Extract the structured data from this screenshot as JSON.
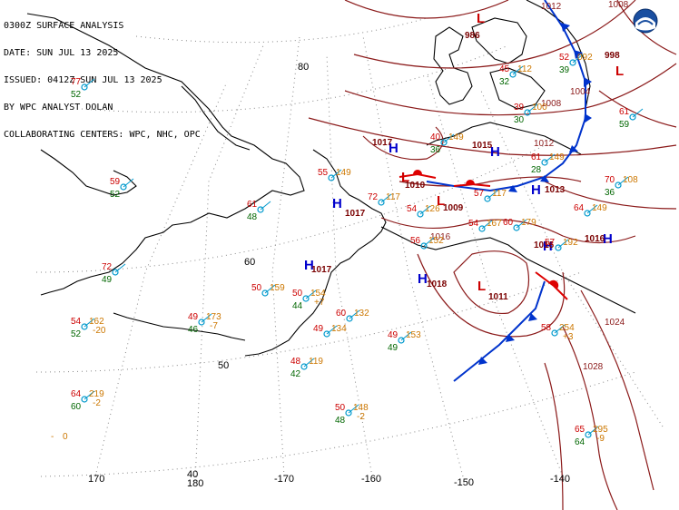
{
  "header": {
    "lines": [
      "0300Z SURFACE ANALYSIS",
      "DATE: SUN JUL 13 2025",
      "ISSUED: 0412Z SUN JUL 13 2025",
      "BY WPC ANALYST DOLAN",
      "COLLABORATING CENTERS: WPC, NHC, OPC"
    ]
  },
  "graticule_labels": {
    "lat80": "80",
    "lat60": "60",
    "lat50": "50",
    "lat40": "40",
    "lon180": "180",
    "lon170": "170",
    "lon_170": "-170",
    "lon_160": "-160",
    "lon_150": "-150",
    "lon_140": "-140"
  },
  "colors": {
    "coast": "#000000",
    "isobar": "#8b1a1a",
    "high": "#0000cc",
    "low": "#cc0000",
    "temperature": "#cc0000",
    "dewpoint": "#006600",
    "pressure_code": "#cc7700",
    "graticule": "#777777",
    "cold_front": "#0033cc",
    "warm_front": "#dd0000",
    "station": "#0099cc"
  },
  "systems": [
    {
      "type": "H",
      "center_pressure": "1017"
    },
    {
      "type": "H",
      "center_pressure": "1017"
    },
    {
      "type": "H",
      "center_pressure": "1017"
    },
    {
      "type": "H",
      "center_pressure": "1018"
    },
    {
      "type": "H",
      "center_pressure": "1013"
    },
    {
      "type": "H",
      "center_pressure": "1015"
    },
    {
      "type": "H",
      "center_pressure": "1016"
    },
    {
      "type": "L",
      "center_pressure": "1010"
    },
    {
      "type": "L",
      "center_pressure": "1009"
    },
    {
      "type": "L",
      "center_pressure": "1011"
    },
    {
      "type": "L",
      "center_pressure": "998"
    },
    {
      "type": "L",
      "center_pressure": "986"
    },
    {
      "type": "H",
      "center_pressure": "1016"
    }
  ],
  "isobar_labels": [
    "1012",
    "1008",
    "1004",
    "1024",
    "1028",
    "1016",
    "1012",
    "1008"
  ],
  "stations": [
    {
      "t": "77",
      "d": "52"
    },
    {
      "t": "59",
      "d": "52"
    },
    {
      "t": "61",
      "d": "48"
    },
    {
      "t": "72",
      "d": "49"
    },
    {
      "t": "54",
      "d": "52",
      "p": "162",
      "c": "-20"
    },
    {
      "t": "64",
      "d": "60",
      "p": "219",
      "c": "-2"
    },
    {
      "t": "50",
      "p": "159"
    },
    {
      "t": "49",
      "d": "46",
      "p": "173",
      "c": "-7"
    },
    {
      "t": "50",
      "d": "44",
      "p": "154",
      "c": "+7"
    },
    {
      "t": "49",
      "p": "134"
    },
    {
      "t": "48",
      "d": "42",
      "p": "119"
    },
    {
      "t": "50",
      "d": "48",
      "p": "148",
      "c": "-2"
    },
    {
      "t": "49",
      "d": "49",
      "p": "153"
    },
    {
      "t": "60",
      "p": "132"
    },
    {
      "t": "55",
      "p": "149"
    },
    {
      "t": "72",
      "p": "117"
    },
    {
      "t": "54",
      "p": "126"
    },
    {
      "t": "57",
      "p": "117"
    },
    {
      "t": "54",
      "p": "167"
    },
    {
      "t": "60",
      "p": "179"
    },
    {
      "t": "64",
      "p": "149"
    },
    {
      "t": "70",
      "d": "36",
      "p": "108"
    },
    {
      "t": "58",
      "p": "254",
      "c": "+3"
    },
    {
      "t": "65",
      "d": "64",
      "p": "295",
      "c": "-9"
    },
    {
      "t": "57",
      "p": "192"
    },
    {
      "t": "45",
      "d": "32",
      "p": "112"
    },
    {
      "t": "39",
      "d": "30",
      "p": "100"
    },
    {
      "t": "52",
      "d": "39",
      "p": "092"
    },
    {
      "t": "61",
      "d": "59"
    },
    {
      "t": "40",
      "d": "36",
      "p": "149"
    },
    {
      "t": "61",
      "d": "28",
      "p": "149"
    },
    {
      "t": "56",
      "p": "152"
    }
  ],
  "calm_station": {
    "t": "0"
  }
}
